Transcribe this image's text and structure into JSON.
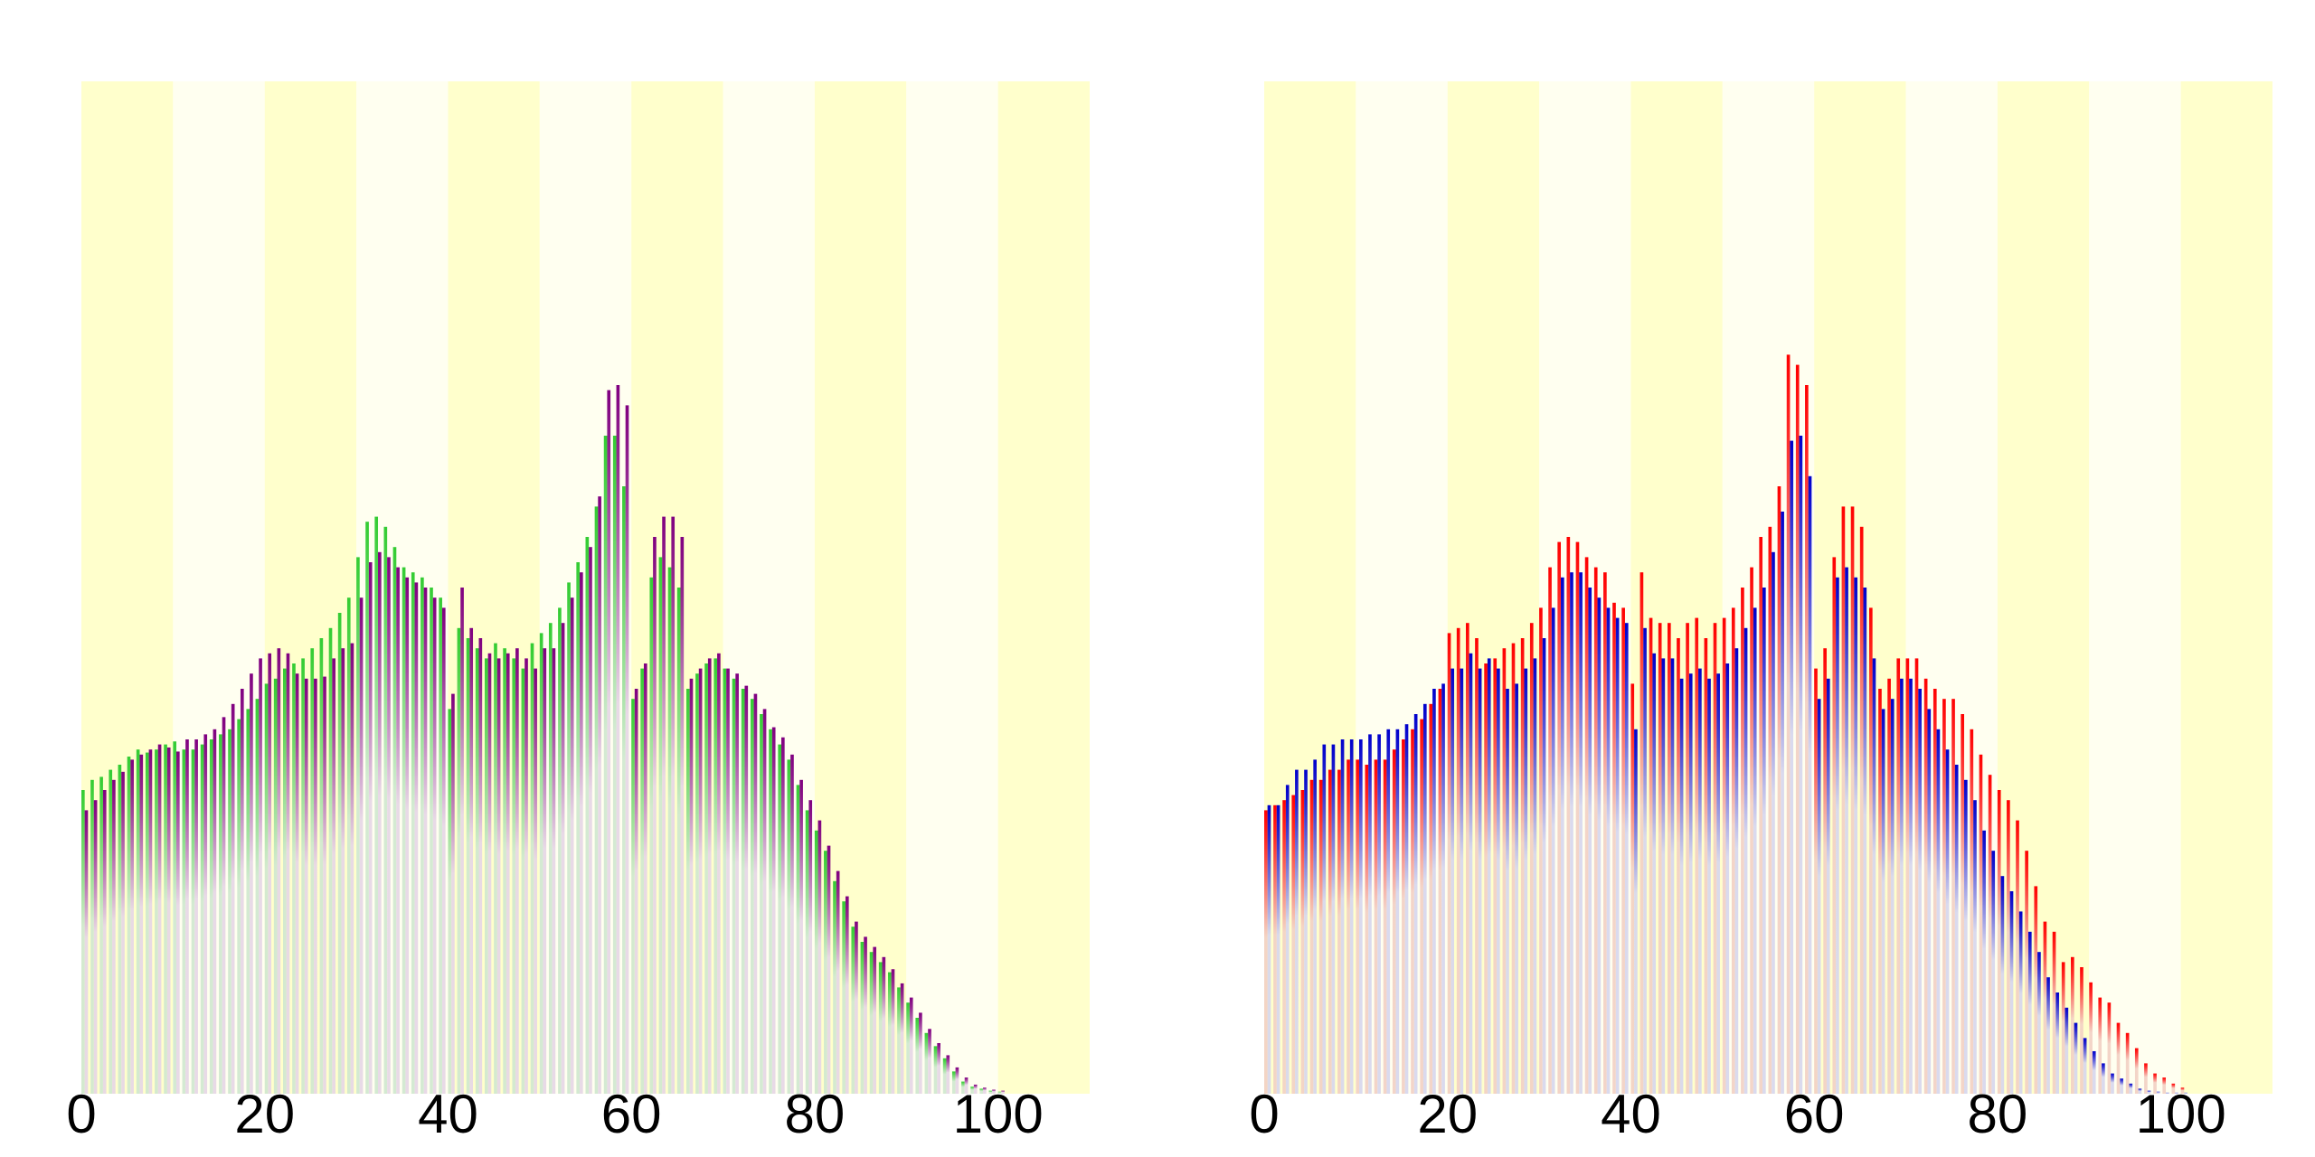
{
  "chart_data": [
    {
      "type": "bar",
      "xlim": [
        0,
        110
      ],
      "ylim": [
        0,
        1
      ],
      "x_ticks": [
        "0",
        "20",
        "40",
        "60",
        "80",
        "100"
      ],
      "background_bands": {
        "width": 10,
        "colors": [
          "#ffffcc",
          "#fffff0"
        ]
      },
      "grid": false,
      "legend": "none",
      "x": [
        0,
        1,
        2,
        3,
        4,
        5,
        6,
        7,
        8,
        9,
        10,
        11,
        12,
        13,
        14,
        15,
        16,
        17,
        18,
        19,
        20,
        21,
        22,
        23,
        24,
        25,
        26,
        27,
        28,
        29,
        30,
        31,
        32,
        33,
        34,
        35,
        36,
        37,
        38,
        39,
        40,
        41,
        42,
        43,
        44,
        45,
        46,
        47,
        48,
        49,
        50,
        51,
        52,
        53,
        54,
        55,
        56,
        57,
        58,
        59,
        60,
        61,
        62,
        63,
        64,
        65,
        66,
        67,
        68,
        69,
        70,
        71,
        72,
        73,
        74,
        75,
        76,
        77,
        78,
        79,
        80,
        81,
        82,
        83,
        84,
        85,
        86,
        87,
        88,
        89,
        90,
        91,
        92,
        93,
        94,
        95,
        96,
        97,
        98,
        99,
        100
      ],
      "series": [
        {
          "color": "#33cc33",
          "values": [
            0.3,
            0.31,
            0.313,
            0.32,
            0.325,
            0.333,
            0.34,
            0.337,
            0.34,
            0.345,
            0.348,
            0.34,
            0.34,
            0.345,
            0.35,
            0.355,
            0.36,
            0.37,
            0.38,
            0.39,
            0.405,
            0.41,
            0.42,
            0.425,
            0.43,
            0.44,
            0.45,
            0.46,
            0.475,
            0.49,
            0.53,
            0.565,
            0.57,
            0.56,
            0.54,
            0.52,
            0.515,
            0.51,
            0.5,
            0.49,
            0.38,
            0.46,
            0.45,
            0.44,
            0.43,
            0.445,
            0.44,
            0.43,
            0.42,
            0.445,
            0.455,
            0.465,
            0.48,
            0.505,
            0.525,
            0.55,
            0.58,
            0.65,
            0.65,
            0.6,
            0.39,
            0.42,
            0.51,
            0.53,
            0.52,
            0.5,
            0.4,
            0.415,
            0.425,
            0.43,
            0.42,
            0.41,
            0.4,
            0.39,
            0.375,
            0.36,
            0.345,
            0.33,
            0.305,
            0.28,
            0.26,
            0.24,
            0.21,
            0.19,
            0.165,
            0.15,
            0.14,
            0.13,
            0.12,
            0.105,
            0.09,
            0.075,
            0.06,
            0.047,
            0.035,
            0.022,
            0.012,
            0.007,
            0.005,
            0.003,
            0.002
          ]
        },
        {
          "color": "#800080",
          "values": [
            0.28,
            0.29,
            0.3,
            0.31,
            0.318,
            0.33,
            0.335,
            0.34,
            0.345,
            0.342,
            0.338,
            0.35,
            0.35,
            0.355,
            0.36,
            0.372,
            0.385,
            0.4,
            0.415,
            0.43,
            0.435,
            0.44,
            0.435,
            0.415,
            0.41,
            0.41,
            0.412,
            0.43,
            0.44,
            0.445,
            0.49,
            0.525,
            0.535,
            0.53,
            0.52,
            0.51,
            0.505,
            0.5,
            0.49,
            0.48,
            0.395,
            0.5,
            0.46,
            0.45,
            0.435,
            0.43,
            0.435,
            0.44,
            0.43,
            0.42,
            0.44,
            0.44,
            0.465,
            0.49,
            0.515,
            0.54,
            0.59,
            0.695,
            0.7,
            0.68,
            0.4,
            0.425,
            0.55,
            0.57,
            0.57,
            0.55,
            0.41,
            0.42,
            0.43,
            0.435,
            0.42,
            0.415,
            0.403,
            0.395,
            0.38,
            0.362,
            0.352,
            0.335,
            0.31,
            0.29,
            0.27,
            0.245,
            0.22,
            0.195,
            0.17,
            0.155,
            0.145,
            0.135,
            0.123,
            0.109,
            0.095,
            0.08,
            0.064,
            0.05,
            0.038,
            0.026,
            0.016,
            0.009,
            0.006,
            0.004,
            0.003
          ]
        }
      ]
    },
    {
      "type": "bar",
      "xlim": [
        0,
        110
      ],
      "ylim": [
        0,
        1
      ],
      "x_ticks": [
        "0",
        "20",
        "40",
        "60",
        "80",
        "100"
      ],
      "background_bands": {
        "width": 10,
        "colors": [
          "#ffffcc",
          "#fffff0"
        ]
      },
      "grid": false,
      "legend": "none",
      "x": [
        0,
        1,
        2,
        3,
        4,
        5,
        6,
        7,
        8,
        9,
        10,
        11,
        12,
        13,
        14,
        15,
        16,
        17,
        18,
        19,
        20,
        21,
        22,
        23,
        24,
        25,
        26,
        27,
        28,
        29,
        30,
        31,
        32,
        33,
        34,
        35,
        36,
        37,
        38,
        39,
        40,
        41,
        42,
        43,
        44,
        45,
        46,
        47,
        48,
        49,
        50,
        51,
        52,
        53,
        54,
        55,
        56,
        57,
        58,
        59,
        60,
        61,
        62,
        63,
        64,
        65,
        66,
        67,
        68,
        69,
        70,
        71,
        72,
        73,
        74,
        75,
        76,
        77,
        78,
        79,
        80,
        81,
        82,
        83,
        84,
        85,
        86,
        87,
        88,
        89,
        90,
        91,
        92,
        93,
        94,
        95,
        96,
        97,
        98,
        99,
        100
      ],
      "series": [
        {
          "color": "#ff0000",
          "values": [
            0.28,
            0.285,
            0.29,
            0.295,
            0.3,
            0.31,
            0.31,
            0.32,
            0.32,
            0.33,
            0.33,
            0.325,
            0.33,
            0.33,
            0.34,
            0.35,
            0.36,
            0.37,
            0.385,
            0.4,
            0.455,
            0.46,
            0.465,
            0.45,
            0.425,
            0.43,
            0.44,
            0.445,
            0.45,
            0.465,
            0.48,
            0.52,
            0.545,
            0.55,
            0.545,
            0.53,
            0.52,
            0.515,
            0.485,
            0.48,
            0.405,
            0.515,
            0.47,
            0.465,
            0.465,
            0.45,
            0.465,
            0.47,
            0.45,
            0.465,
            0.47,
            0.48,
            0.5,
            0.52,
            0.55,
            0.56,
            0.6,
            0.73,
            0.72,
            0.7,
            0.42,
            0.44,
            0.53,
            0.58,
            0.58,
            0.56,
            0.48,
            0.4,
            0.41,
            0.43,
            0.43,
            0.43,
            0.41,
            0.4,
            0.39,
            0.39,
            0.375,
            0.36,
            0.335,
            0.315,
            0.3,
            0.29,
            0.27,
            0.24,
            0.205,
            0.17,
            0.16,
            0.13,
            0.135,
            0.125,
            0.11,
            0.095,
            0.09,
            0.07,
            0.06,
            0.045,
            0.03,
            0.02,
            0.016,
            0.01,
            0.006
          ]
        },
        {
          "color": "#0000cc",
          "values": [
            0.285,
            0.285,
            0.305,
            0.32,
            0.32,
            0.33,
            0.345,
            0.345,
            0.35,
            0.35,
            0.35,
            0.355,
            0.355,
            0.36,
            0.36,
            0.365,
            0.375,
            0.385,
            0.4,
            0.405,
            0.42,
            0.42,
            0.435,
            0.42,
            0.43,
            0.42,
            0.4,
            0.405,
            0.42,
            0.43,
            0.45,
            0.48,
            0.51,
            0.515,
            0.515,
            0.5,
            0.49,
            0.48,
            0.47,
            0.465,
            0.36,
            0.46,
            0.435,
            0.43,
            0.43,
            0.41,
            0.415,
            0.42,
            0.41,
            0.415,
            0.425,
            0.44,
            0.46,
            0.48,
            0.5,
            0.535,
            0.575,
            0.645,
            0.65,
            0.61,
            0.39,
            0.41,
            0.51,
            0.52,
            0.51,
            0.5,
            0.43,
            0.38,
            0.39,
            0.41,
            0.41,
            0.4,
            0.38,
            0.36,
            0.34,
            0.325,
            0.31,
            0.29,
            0.26,
            0.24,
            0.215,
            0.2,
            0.18,
            0.16,
            0.14,
            0.115,
            0.1,
            0.085,
            0.07,
            0.055,
            0.042,
            0.03,
            0.02,
            0.015,
            0.01,
            0.005,
            0.003,
            0.002,
            0.001,
            0.001,
            0.001
          ]
        }
      ]
    }
  ]
}
